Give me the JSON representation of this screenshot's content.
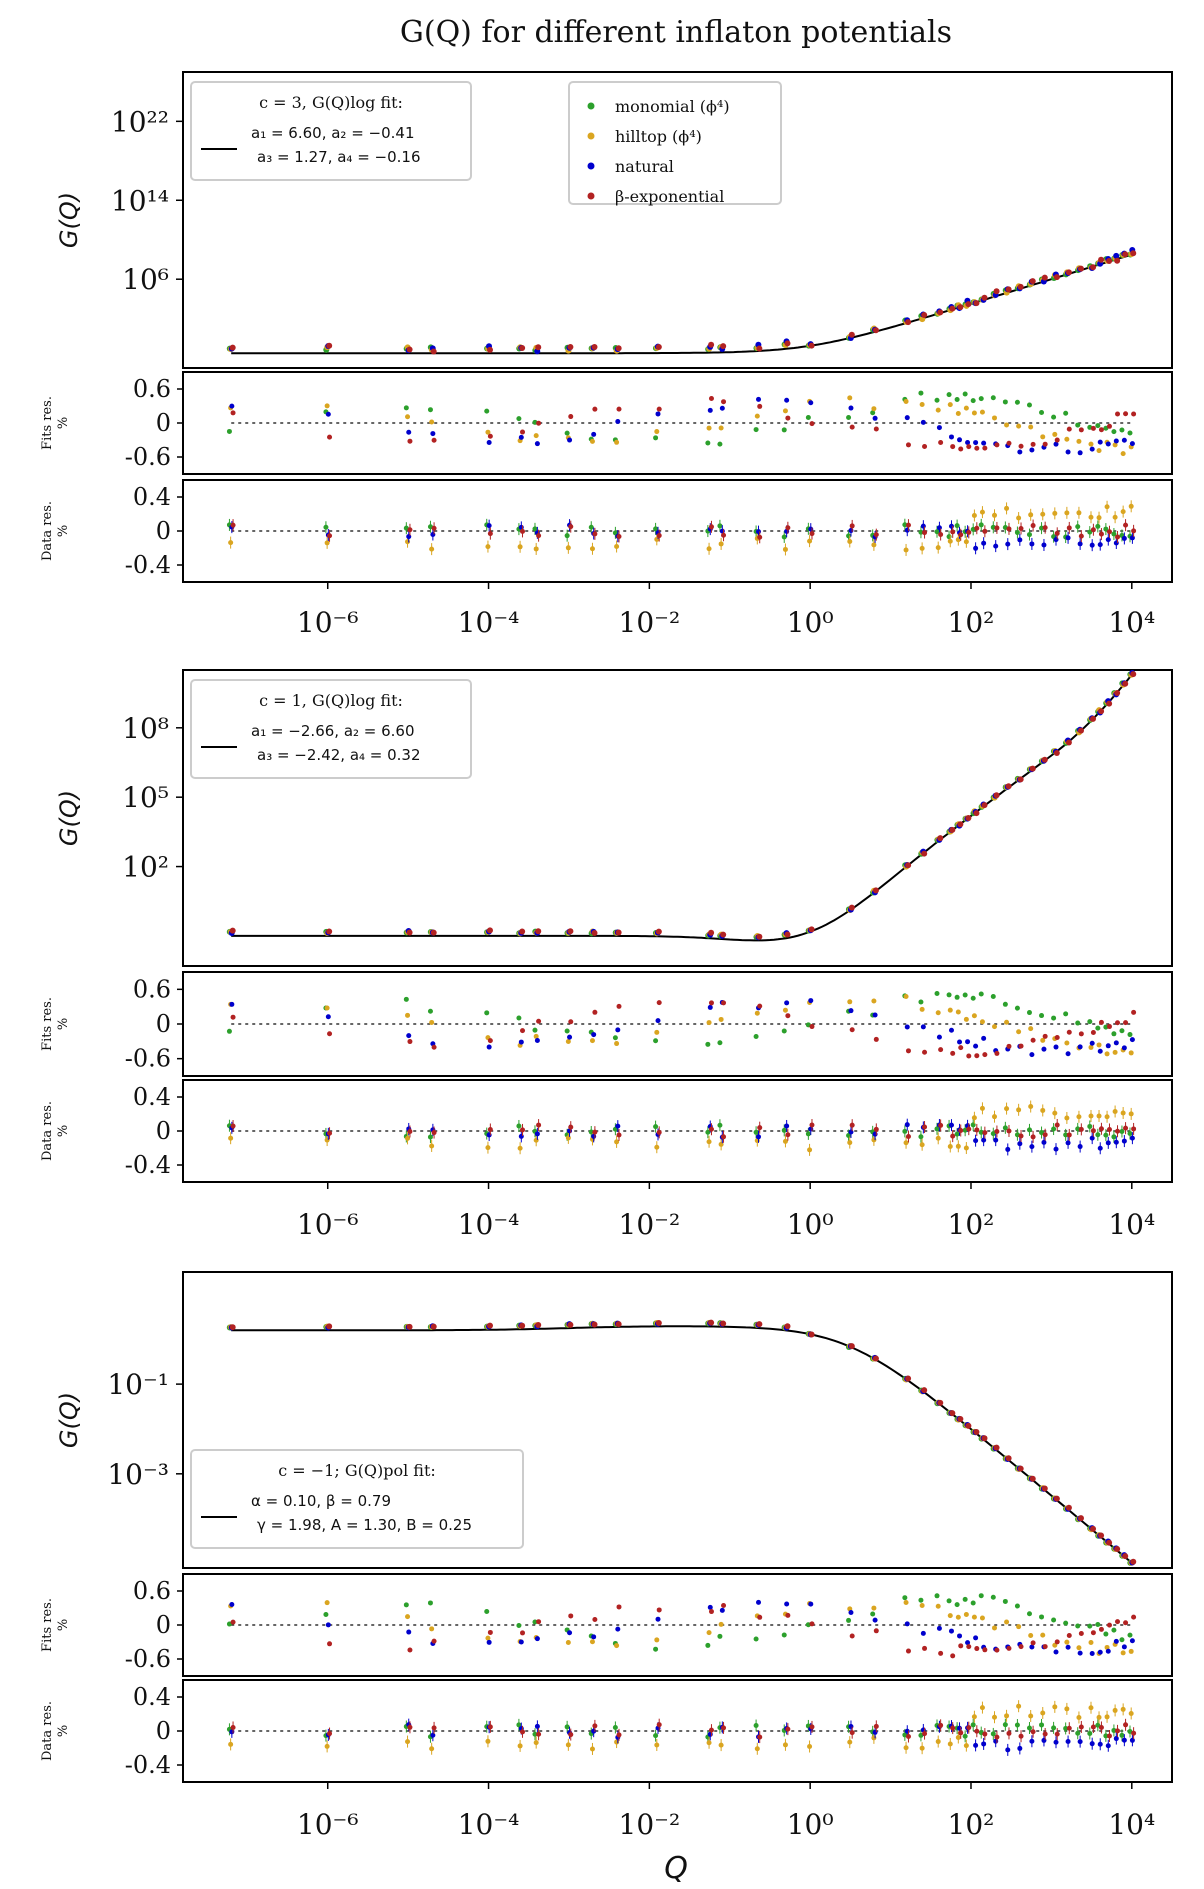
{
  "title": "G(Q) for different inflaton potentials",
  "xlabel": "Q",
  "ylabel": "G(Q)",
  "fits_res_label": "Fits res.",
  "data_res_label": "Data res.",
  "pct_label": "%",
  "colors": {
    "monomial": "#2ca02c",
    "hilltop": "#daa520",
    "natural": "#0000cd",
    "beta": "#b22222",
    "fit": "#000000"
  },
  "legend_series": [
    "monomial (ϕ⁴)",
    "hilltop (ϕ⁴)",
    "natural",
    "β-exponential"
  ],
  "x_ticks": [
    {
      "v": -6,
      "label": "10⁻⁶"
    },
    {
      "v": -4,
      "label": "10⁻⁴"
    },
    {
      "v": -2,
      "label": "10⁻²"
    },
    {
      "v": 0,
      "label": "10⁰"
    },
    {
      "v": 2,
      "label": "10²"
    },
    {
      "v": 4,
      "label": "10⁴"
    }
  ],
  "chart_data": [
    {
      "type": "scatter",
      "panel": "c=3",
      "legend_title": "c = 3, G(Q)log fit:",
      "fit_params_line1": "a₁ = 6.60, a₂ = −0.41",
      "fit_params_line2": "a₃ = 1.27, a₄ = −0.16",
      "xscale": "log",
      "xlim_log10": [
        -7.8,
        4.5
      ],
      "ylim_log10": [
        -3,
        27
      ],
      "y_ticks": [
        {
          "v": 6,
          "label": "10⁶"
        },
        {
          "v": 14,
          "label": "10¹⁴"
        },
        {
          "v": 22,
          "label": "10²²"
        }
      ],
      "fits_res_ticks": [
        {
          "v": 0.6,
          "label": "0.6"
        },
        {
          "v": 0,
          "label": "0"
        },
        {
          "v": -0.6,
          "label": "-0.6"
        }
      ],
      "data_res_ticks": [
        {
          "v": 0.4,
          "label": "0.4"
        },
        {
          "v": 0,
          "label": "0"
        },
        {
          "v": -0.4,
          "label": "-0.4"
        }
      ]
    },
    {
      "type": "scatter",
      "panel": "c=1",
      "legend_title": "c = 1, G(Q)log fit:",
      "fit_params_line1": "a₁ = −2.66, a₂ = 6.60",
      "fit_params_line2": "a₃ = −2.42, a₄ = 0.32",
      "xscale": "log",
      "xlim_log10": [
        -7.8,
        4.5
      ],
      "ylim_log10": [
        -2.3,
        10.5
      ],
      "y_ticks": [
        {
          "v": 2,
          "label": "10²"
        },
        {
          "v": 5,
          "label": "10⁵"
        },
        {
          "v": 8,
          "label": "10⁸"
        }
      ],
      "fits_res_ticks": [
        {
          "v": 0.6,
          "label": "0.6"
        },
        {
          "v": 0,
          "label": "0"
        },
        {
          "v": -0.6,
          "label": "-0.6"
        }
      ],
      "data_res_ticks": [
        {
          "v": 0.4,
          "label": "0.4"
        },
        {
          "v": 0,
          "label": "0"
        },
        {
          "v": -0.4,
          "label": "-0.4"
        }
      ]
    },
    {
      "type": "scatter",
      "panel": "c=-1",
      "legend_title": "c = −1; G(Q)pol fit:",
      "fit_params_line1": "α = 0.10, β = 0.79",
      "fit_params_line2": "γ = 1.98, A = 1.30, B = 0.25",
      "xscale": "log",
      "xlim_log10": [
        -7.8,
        4.5
      ],
      "ylim_log10": [
        -5.1,
        1.5
      ],
      "y_ticks": [
        {
          "v": -1,
          "label": "10⁻¹"
        },
        {
          "v": -3,
          "label": "10⁻³"
        }
      ],
      "fits_res_ticks": [
        {
          "v": 0.6,
          "label": "0.6"
        },
        {
          "v": 0,
          "label": "0"
        },
        {
          "v": -0.6,
          "label": "-0.6"
        }
      ],
      "data_res_ticks": [
        {
          "v": 0.4,
          "label": "0.4"
        },
        {
          "v": 0,
          "label": "0"
        },
        {
          "v": -0.4,
          "label": "-0.4"
        }
      ]
    }
  ]
}
